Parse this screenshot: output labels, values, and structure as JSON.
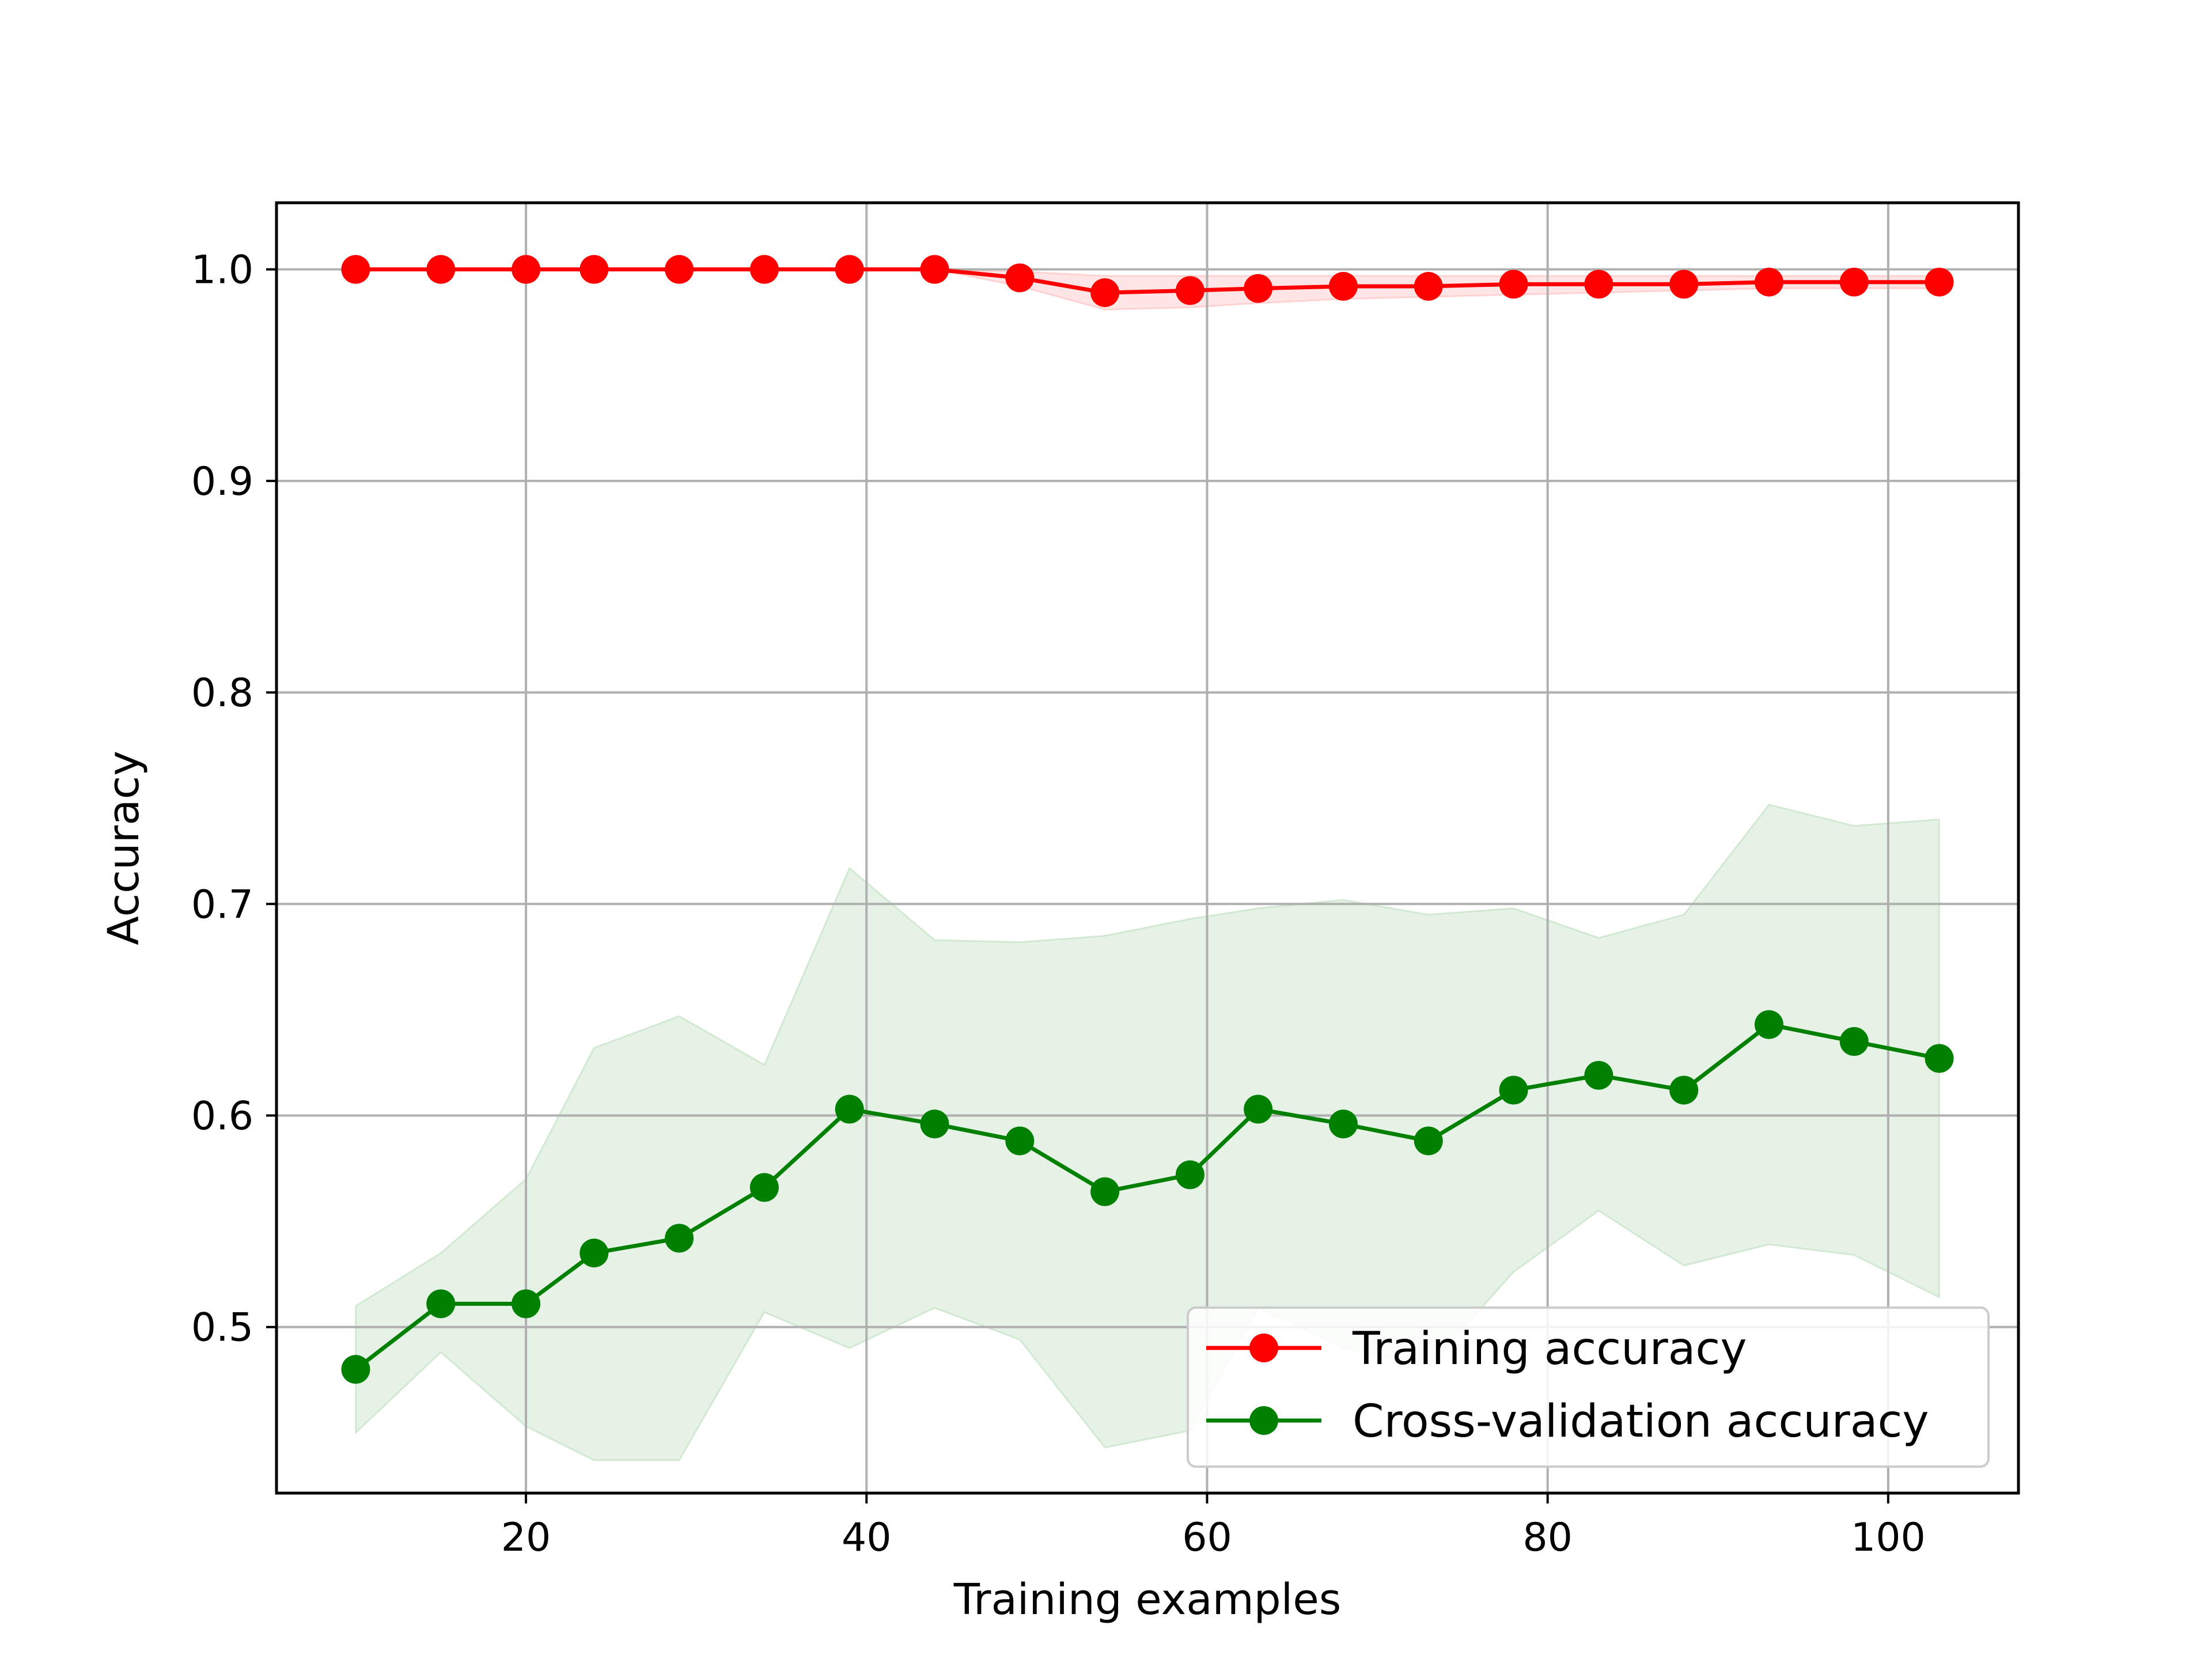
{
  "chart_data": {
    "type": "line",
    "title": "",
    "xlabel": "Training examples",
    "ylabel": "Accuracy",
    "xlim": [
      5.35,
      107.65
    ],
    "ylim": [
      0.4215,
      1.0315
    ],
    "xticks": [
      20,
      40,
      60,
      80,
      100
    ],
    "yticks": [
      0.5,
      0.6,
      0.7,
      0.8,
      0.9,
      1.0
    ],
    "xtick_labels": [
      "20",
      "40",
      "60",
      "80",
      "100"
    ],
    "ytick_labels": [
      "0.5",
      "0.6",
      "0.7",
      "0.8",
      "0.9",
      "1.0"
    ],
    "grid": true,
    "legend_position": "lower-right",
    "x": [
      10,
      15,
      20,
      24,
      29,
      34,
      39,
      44,
      49,
      54,
      59,
      63,
      68,
      73,
      78,
      83,
      88,
      93,
      98,
      103
    ],
    "series": [
      {
        "name": "Training accuracy",
        "color": "#ff0000",
        "marker": "circle",
        "values": [
          1.0,
          1.0,
          1.0,
          1.0,
          1.0,
          1.0,
          1.0,
          1.0,
          0.996,
          0.989,
          0.99,
          0.991,
          0.992,
          0.992,
          0.993,
          0.993,
          0.993,
          0.994,
          0.994,
          0.994
        ],
        "band_upper": [
          1.0,
          1.0,
          1.0,
          1.0,
          1.0,
          1.0,
          1.0,
          1.0,
          0.999,
          0.997,
          0.997,
          0.997,
          0.997,
          0.997,
          0.997,
          0.997,
          0.997,
          0.997,
          0.997,
          0.997
        ],
        "band_lower": [
          1.0,
          1.0,
          1.0,
          1.0,
          1.0,
          1.0,
          1.0,
          1.0,
          0.992,
          0.981,
          0.982,
          0.984,
          0.986,
          0.987,
          0.988,
          0.989,
          0.99,
          0.991,
          0.991,
          0.991
        ]
      },
      {
        "name": "Cross-validation accuracy",
        "color": "#008000",
        "marker": "circle",
        "values": [
          0.48,
          0.511,
          0.511,
          0.535,
          0.542,
          0.566,
          0.603,
          0.596,
          0.588,
          0.564,
          0.572,
          0.603,
          0.596,
          0.588,
          0.612,
          0.619,
          0.612,
          0.643,
          0.635,
          0.627
        ],
        "band_upper": [
          0.51,
          0.535,
          0.57,
          0.632,
          0.647,
          0.624,
          0.717,
          0.683,
          0.682,
          0.685,
          0.693,
          0.698,
          0.702,
          0.695,
          0.698,
          0.684,
          0.695,
          0.747,
          0.737,
          0.74
        ],
        "band_lower": [
          0.45,
          0.488,
          0.453,
          0.437,
          0.437,
          0.507,
          0.49,
          0.509,
          0.494,
          0.443,
          0.451,
          0.509,
          0.49,
          0.481,
          0.526,
          0.555,
          0.529,
          0.539,
          0.534,
          0.514
        ]
      }
    ]
  }
}
